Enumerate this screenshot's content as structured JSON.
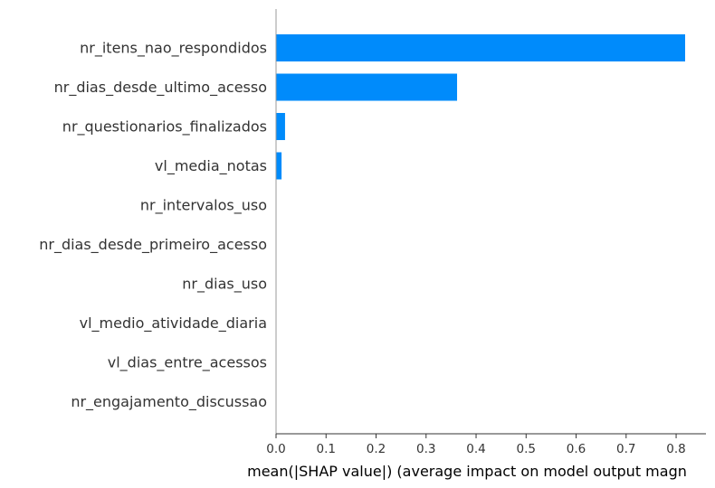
{
  "chart_data": {
    "type": "bar",
    "orientation": "horizontal",
    "categories": [
      "nr_itens_nao_respondidos",
      "nr_dias_desde_ultimo_acesso",
      "nr_questionarios_finalizados",
      "vl_media_notas",
      "nr_intervalos_uso",
      "nr_dias_desde_primeiro_acesso",
      "nr_dias_uso",
      "vl_medio_atividade_diaria",
      "vl_dias_entre_acessos",
      "nr_engajamento_discussao"
    ],
    "values": [
      0.818,
      0.362,
      0.018,
      0.011,
      0.0,
      0.0,
      0.0,
      0.0,
      0.0,
      0.0
    ],
    "xlabel": "mean(|SHAP value|) (average impact on model output magn",
    "xlim": [
      0,
      0.85
    ],
    "xticks": [
      "0.0",
      "0.1",
      "0.2",
      "0.3",
      "0.4",
      "0.5",
      "0.6",
      "0.7",
      "0.8"
    ],
    "bar_color": "#008bfb",
    "grid": false
  }
}
